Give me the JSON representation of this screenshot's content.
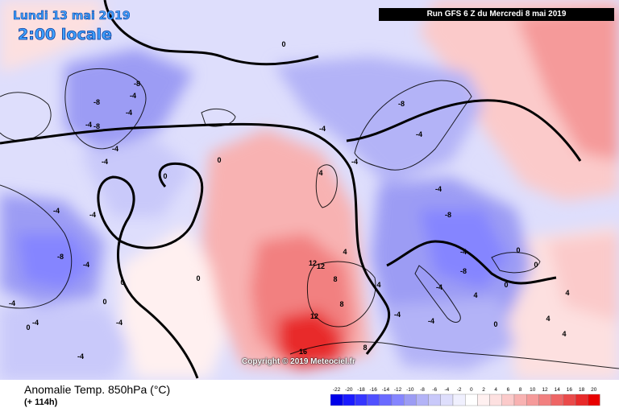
{
  "header": {
    "date": "Lundi 13 mai 2019",
    "time": "2:00 locale",
    "run": "Run GFS 6 Z du Mercredi 8 mai 2019"
  },
  "footer": {
    "title": "Anomalie Temp. 850hPa (°C)",
    "subtitle": "(+ 114h)",
    "copyright": "Copyright © 2019 Meteociel.fr"
  },
  "legend": {
    "ticks": [
      "-22",
      "-20",
      "-18",
      "-16",
      "-14",
      "-12",
      "-10",
      "-8",
      "-6",
      "-4",
      "-2",
      "0",
      "2",
      "4",
      "6",
      "8",
      "10",
      "12",
      "14",
      "16",
      "18",
      "20"
    ],
    "colors": [
      "#0000e8",
      "#1a1aff",
      "#3535ff",
      "#5050ff",
      "#6a6aff",
      "#8585ff",
      "#9c9cf4",
      "#b3b3f7",
      "#c9c9fa",
      "#dedefc",
      "#f0f0fe",
      "#ffffff",
      "#fff0f0",
      "#fde0e0",
      "#fbcaca",
      "#f8b2b2",
      "#f59a9a",
      "#f28080",
      "#ee6565",
      "#ea4a4a",
      "#e82a2a",
      "#e80000"
    ]
  },
  "map_labels": [
    {
      "text": "-8"
    },
    {
      "text": "-8"
    },
    {
      "text": "-4"
    },
    {
      "text": "-4"
    },
    {
      "text": "-4"
    },
    {
      "text": "-4"
    },
    {
      "text": "-8"
    },
    {
      "text": "-4"
    },
    {
      "text": "-4"
    },
    {
      "text": "-4"
    },
    {
      "text": "0"
    },
    {
      "text": "0"
    },
    {
      "text": "-8"
    },
    {
      "text": "-4"
    },
    {
      "text": "-4"
    },
    {
      "text": "0"
    },
    {
      "text": "0"
    },
    {
      "text": "0"
    },
    {
      "text": "-4"
    },
    {
      "text": "4"
    },
    {
      "text": "4"
    },
    {
      "text": "12"
    },
    {
      "text": "12"
    },
    {
      "text": "8"
    },
    {
      "text": "4"
    },
    {
      "text": "8"
    },
    {
      "text": "12"
    },
    {
      "text": "8"
    },
    {
      "text": "16"
    },
    {
      "text": "4"
    },
    {
      "text": "-8"
    },
    {
      "text": "-8"
    },
    {
      "text": "-4"
    },
    {
      "text": "-4"
    },
    {
      "text": "-4"
    },
    {
      "text": "-4"
    },
    {
      "text": "-4"
    },
    {
      "text": "0"
    },
    {
      "text": "0"
    },
    {
      "text": "0"
    },
    {
      "text": "4"
    },
    {
      "text": "4"
    },
    {
      "text": "-8"
    },
    {
      "text": "-4"
    },
    {
      "text": "0"
    },
    {
      "text": "0"
    },
    {
      "text": "0"
    },
    {
      "text": "4"
    },
    {
      "text": "-4"
    },
    {
      "text": "-4"
    },
    {
      "text": "-4"
    },
    {
      "text": "-4"
    }
  ]
}
